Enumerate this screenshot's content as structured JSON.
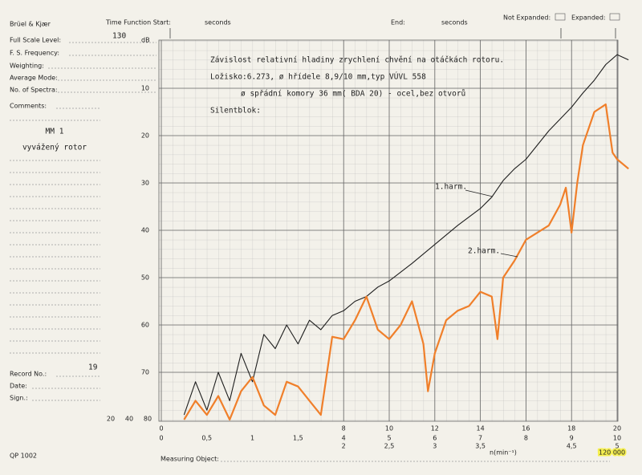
{
  "form": {
    "brand": "Brüel & Kjær",
    "full_scale_level": "Full Scale Level:",
    "fs_frequency": "F. S. Frequency:",
    "weighting": "Weighting:",
    "average_mode": "Average Mode:",
    "no_of_spectra": "No. of Spectra:",
    "comments": "Comments:",
    "comment1": "MM 1",
    "comment2": "vyvážený rotor",
    "record_no": "Record No.:",
    "record_value": "19",
    "date": "Date:",
    "sign": "Sign.:",
    "form_id": "QP 1002",
    "time_start": "Time Function Start:",
    "seconds1": "seconds",
    "end": "End:",
    "seconds2": "seconds",
    "not_expanded": "Not Expanded:",
    "expanded": "Expanded:",
    "full_scale_value": "130",
    "measuring_object": "Measuring Object:",
    "scale_a": "20",
    "scale_b": "40",
    "scale_c": "80"
  },
  "chart_data": {
    "type": "line",
    "yunit": "dB",
    "ylim": [
      0,
      80
    ],
    "yinvert": true,
    "yticks": [
      10,
      20,
      30,
      40,
      50,
      60,
      70
    ],
    "xlim": [
      0,
      20
    ],
    "xticks": [
      0,
      8,
      10,
      12,
      14,
      16,
      18,
      20
    ],
    "xticks2": [
      {
        "value": 0,
        "label": "0"
      },
      {
        "value": 2,
        "label": "0,5"
      },
      {
        "value": 4,
        "label": "1"
      },
      {
        "value": 6,
        "label": "1,5"
      },
      {
        "value": 8,
        "label": "4"
      },
      {
        "value": 10,
        "label": "5"
      },
      {
        "value": 12,
        "label": "6"
      },
      {
        "value": 14,
        "label": "7"
      },
      {
        "value": 16,
        "label": "8"
      },
      {
        "value": 18,
        "label": "9"
      },
      {
        "value": 20,
        "label": "10"
      }
    ],
    "xticks3": [
      {
        "value": 8,
        "label": "2"
      },
      {
        "value": 10,
        "label": "2,5"
      },
      {
        "value": 12,
        "label": "3"
      },
      {
        "value": 14,
        "label": "3,5"
      },
      {
        "value": 18,
        "label": "4,5"
      },
      {
        "value": 20,
        "label": "5"
      }
    ],
    "xlabel": "n(min⁻¹)",
    "xmax_label": "120 000",
    "grid": true,
    "annotations": [
      "Závislost relativní hladiny zrychlení chvění na otáčkách rotoru.",
      "Ložisko:6.273, ø hřídele 8,9/10 mm,typ VÚVL 558",
      "ø spřádní komory 36 mm( BDA 20) - ocel,bez otvorů",
      "Silentblok:"
    ],
    "series": [
      {
        "name": "1.harm.",
        "color": "#1e1e1e",
        "x": [
          1,
          1.5,
          2,
          2.5,
          3,
          3.5,
          4,
          4.5,
          5,
          5.5,
          6,
          6.5,
          7,
          7.5,
          8,
          8.5,
          9,
          9.5,
          10,
          11,
          12,
          13,
          14,
          14.5,
          15,
          15.5,
          16,
          17,
          18,
          18.5,
          19,
          19.5,
          20,
          20.5
        ],
        "values": [
          79,
          72,
          78,
          70,
          76,
          66,
          72,
          62,
          65,
          60,
          64,
          59,
          61,
          58,
          57,
          55,
          54,
          52,
          50.7,
          47,
          43,
          39,
          35.4,
          33,
          29.5,
          27,
          25,
          19,
          14,
          11,
          8.3,
          5,
          2.9,
          4
        ]
      },
      {
        "name": "2.harm.",
        "color": "#f07f2a",
        "x": [
          1,
          1.5,
          2,
          2.5,
          3,
          3.5,
          4,
          4.5,
          5,
          5.5,
          6,
          6.5,
          7,
          7.5,
          8,
          8.5,
          9,
          9.5,
          10,
          10.5,
          11,
          11.5,
          11.7,
          12,
          12.5,
          13,
          13.5,
          14,
          14.5,
          14.75,
          15,
          15.5,
          16,
          16.5,
          17,
          17.5,
          17.75,
          18,
          18.25,
          18.5,
          19,
          19.5,
          19.8,
          20,
          20.5
        ],
        "values": [
          80,
          76,
          79,
          75,
          80,
          74,
          71,
          77,
          79,
          72,
          73,
          76,
          79,
          62.5,
          63,
          59,
          54,
          61,
          63,
          60,
          55,
          64,
          74,
          66,
          59,
          57,
          56,
          53,
          54,
          63,
          50,
          46.4,
          42,
          40.5,
          39,
          34.6,
          31,
          40.5,
          30,
          22,
          15,
          13.4,
          23.6,
          25,
          27
        ]
      }
    ]
  }
}
